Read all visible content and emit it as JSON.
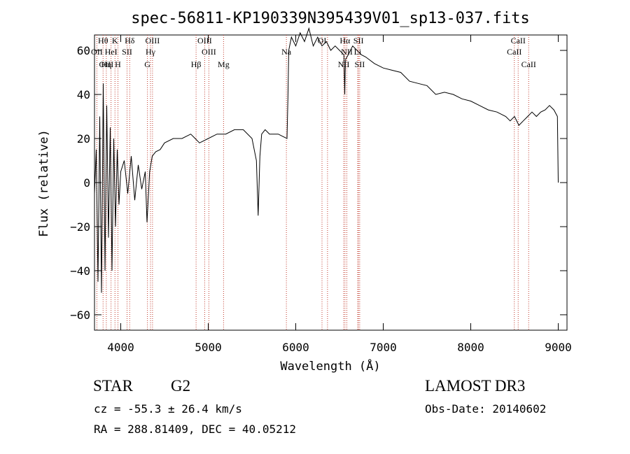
{
  "chart_data": {
    "type": "line",
    "title": "spec-56811-KP190339N395439V01_sp13-037.fits",
    "xlabel": "Wavelength (Å)",
    "ylabel": "Flux (relative)",
    "xlim": [
      3700,
      9100
    ],
    "ylim": [
      -67,
      67
    ],
    "xticks": [
      4000,
      5000,
      6000,
      7000,
      8000,
      9000
    ],
    "yticks": [
      -60,
      -40,
      -20,
      0,
      20,
      40,
      60
    ],
    "grid": false,
    "series": [
      {
        "x": [
          3700,
          3720,
          3740,
          3760,
          3780,
          3800,
          3820,
          3840,
          3860,
          3880,
          3900,
          3920,
          3940,
          3960,
          3980,
          4000,
          4040,
          4080,
          4120,
          4160,
          4200,
          4240,
          4280,
          4300,
          4330,
          4360,
          4400,
          4450,
          4500,
          4600,
          4700,
          4800,
          4850,
          4900,
          5000,
          5100,
          5200,
          5300,
          5400,
          5500,
          5550,
          5570,
          5590,
          5610,
          5650,
          5700,
          5800,
          5850,
          5900,
          5910,
          5920,
          5950,
          6000,
          6050,
          6100,
          6150,
          6200,
          6250,
          6300,
          6350,
          6400,
          6450,
          6500,
          6550,
          6560,
          6565,
          6570,
          6600,
          6650,
          6700,
          6750,
          6800,
          6900,
          7000,
          7100,
          7200,
          7300,
          7400,
          7500,
          7600,
          7700,
          7800,
          7900,
          8000,
          8100,
          8200,
          8300,
          8400,
          8450,
          8500,
          8550,
          8600,
          8650,
          8700,
          8750,
          8800,
          8850,
          8900,
          8950,
          8990,
          9000
        ],
        "y": [
          -5,
          15,
          -45,
          30,
          -50,
          45,
          -40,
          35,
          -25,
          25,
          -40,
          20,
          -20,
          15,
          -10,
          5,
          10,
          -5,
          12,
          -8,
          8,
          -3,
          5,
          -18,
          5,
          12,
          14,
          15,
          18,
          20,
          20,
          22,
          20,
          18,
          20,
          22,
          22,
          24,
          24,
          20,
          10,
          -15,
          12,
          22,
          24,
          22,
          22,
          21,
          20,
          38,
          60,
          66,
          62,
          68,
          64,
          70,
          62,
          66,
          62,
          64,
          60,
          62,
          60,
          58,
          40,
          50,
          56,
          58,
          62,
          60,
          58,
          57,
          54,
          52,
          51,
          50,
          46,
          45,
          44,
          40,
          41,
          40,
          38,
          37,
          35,
          33,
          32,
          30,
          28,
          30,
          26,
          28,
          30,
          32,
          30,
          32,
          33,
          35,
          33,
          30,
          0
        ]
      }
    ],
    "annotations": [
      {
        "text": "Hθ",
        "x": 3798,
        "row": 1
      },
      {
        "text": "K",
        "x": 3934,
        "row": 1
      },
      {
        "text": "Hδ",
        "x": 4102,
        "row": 1
      },
      {
        "text": "OIII",
        "x": 4363,
        "row": 1
      },
      {
        "text": "OIII",
        "x": 4959,
        "row": 1
      },
      {
        "text": "OI",
        "x": 6300,
        "row": 1
      },
      {
        "text": "Hα",
        "x": 6563,
        "row": 1
      },
      {
        "text": "SII",
        "x": 6717,
        "row": 1
      },
      {
        "text": "CaII",
        "x": 8542,
        "row": 1
      },
      {
        "text": "OII",
        "x": 3727,
        "row": 2
      },
      {
        "text": "HeI",
        "x": 3889,
        "row": 2
      },
      {
        "text": "SII",
        "x": 4072,
        "row": 2
      },
      {
        "text": "Hγ",
        "x": 4340,
        "row": 2
      },
      {
        "text": "OIII",
        "x": 5007,
        "row": 2
      },
      {
        "text": "Na",
        "x": 5893,
        "row": 2
      },
      {
        "text": "NII",
        "x": 6584,
        "row": 2
      },
      {
        "text": "Li",
        "x": 6708,
        "row": 2
      },
      {
        "text": "CaII",
        "x": 8498,
        "row": 2
      },
      {
        "text": "OIII",
        "x": 3835,
        "row": 3
      },
      {
        "text": "Hη",
        "x": 3835,
        "row": 3
      },
      {
        "text": "H",
        "x": 3968,
        "row": 3
      },
      {
        "text": "G",
        "x": 4305,
        "row": 3
      },
      {
        "text": "Hβ",
        "x": 4861,
        "row": 3
      },
      {
        "text": "Mg",
        "x": 5175,
        "row": 3
      },
      {
        "text": "NII",
        "x": 6548,
        "row": 3
      },
      {
        "text": "SII",
        "x": 6731,
        "row": 3
      },
      {
        "text": "CaII",
        "x": 8662,
        "row": 3
      }
    ],
    "lines_x": [
      3727,
      3798,
      3835,
      3889,
      3934,
      3968,
      4072,
      4102,
      4305,
      4340,
      4363,
      4861,
      4959,
      5007,
      5175,
      5893,
      6300,
      6363,
      6548,
      6563,
      6584,
      6708,
      6717,
      6731,
      8498,
      8542,
      8662
    ]
  },
  "info": {
    "object_class": "STAR",
    "subclass": "G2",
    "survey": "LAMOST DR3",
    "cz": "cz = -55.3 ± 26.4 km/s",
    "obs_date": "Obs-Date: 20140602",
    "coords": "RA = 288.81409, DEC =  40.05212"
  }
}
